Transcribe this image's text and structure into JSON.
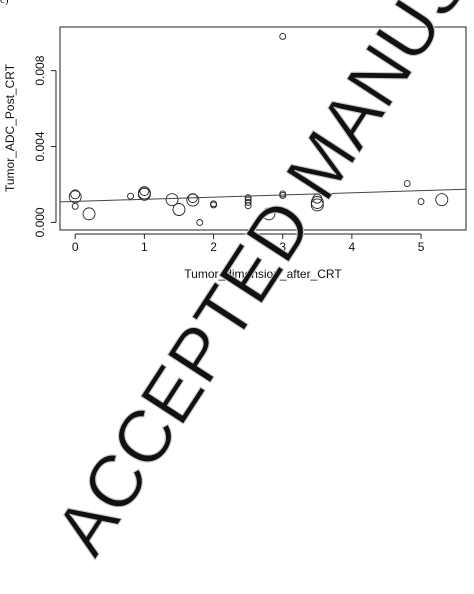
{
  "panel_label": "c)",
  "watermark": "ACCEPTED MANUSCRIPT",
  "chart_data": {
    "type": "scatter",
    "title": "",
    "xlabel": "Tumor_dimension_after_CRT",
    "ylabel": "Tumor_ADC_Post_CRT",
    "xlim": [
      -0.22,
      5.65
    ],
    "ylim": [
      -0.0004,
      0.0103
    ],
    "xticks": [
      0,
      1,
      2,
      3,
      4,
      5
    ],
    "xtick_labels": [
      "0",
      "1",
      "2",
      "3",
      "4",
      "5"
    ],
    "yticks": [
      0.0,
      0.004,
      0.008
    ],
    "ytick_labels": [
      "0.000",
      "0.004",
      "0.008"
    ],
    "grid": false,
    "legend": "none",
    "points": [
      {
        "x": 0.0,
        "y": 0.00148,
        "size": "medium"
      },
      {
        "x": 0.0,
        "y": 0.00135,
        "size": "large"
      },
      {
        "x": 0.0,
        "y": 0.00085,
        "size": "small"
      },
      {
        "x": 0.2,
        "y": 0.00045,
        "size": "large"
      },
      {
        "x": 0.8,
        "y": 0.00138,
        "size": "small"
      },
      {
        "x": 1.0,
        "y": 0.00165,
        "size": "medium"
      },
      {
        "x": 1.0,
        "y": 0.00155,
        "size": "large"
      },
      {
        "x": 1.0,
        "y": 0.00148,
        "size": "large"
      },
      {
        "x": 1.4,
        "y": 0.0012,
        "size": "large"
      },
      {
        "x": 1.5,
        "y": 0.00068,
        "size": "large"
      },
      {
        "x": 1.7,
        "y": 0.00128,
        "size": "medium"
      },
      {
        "x": 1.7,
        "y": 0.00118,
        "size": "large"
      },
      {
        "x": 1.8,
        "y": 0.0,
        "size": "small"
      },
      {
        "x": 2.0,
        "y": 0.00098,
        "size": "small"
      },
      {
        "x": 2.0,
        "y": 0.00092,
        "size": "small"
      },
      {
        "x": 2.5,
        "y": 0.0013,
        "size": "small"
      },
      {
        "x": 2.5,
        "y": 0.00118,
        "size": "small"
      },
      {
        "x": 2.5,
        "y": 0.00105,
        "size": "small"
      },
      {
        "x": 2.5,
        "y": 0.00088,
        "size": "small"
      },
      {
        "x": 2.8,
        "y": 0.00045,
        "size": "large"
      },
      {
        "x": 3.0,
        "y": 0.0098,
        "size": "small"
      },
      {
        "x": 3.0,
        "y": 0.0015,
        "size": "small"
      },
      {
        "x": 3.0,
        "y": 0.00142,
        "size": "small"
      },
      {
        "x": 3.5,
        "y": 0.00125,
        "size": "medium"
      },
      {
        "x": 3.5,
        "y": 0.00105,
        "size": "large"
      },
      {
        "x": 3.5,
        "y": 0.00092,
        "size": "large"
      },
      {
        "x": 4.8,
        "y": 0.00205,
        "size": "small"
      },
      {
        "x": 5.0,
        "y": 0.0011,
        "size": "small"
      },
      {
        "x": 5.3,
        "y": 0.0012,
        "size": "large"
      }
    ],
    "regression_line": {
      "x": [
        -0.22,
        5.65
      ],
      "y": [
        0.00108,
        0.00175
      ]
    }
  }
}
